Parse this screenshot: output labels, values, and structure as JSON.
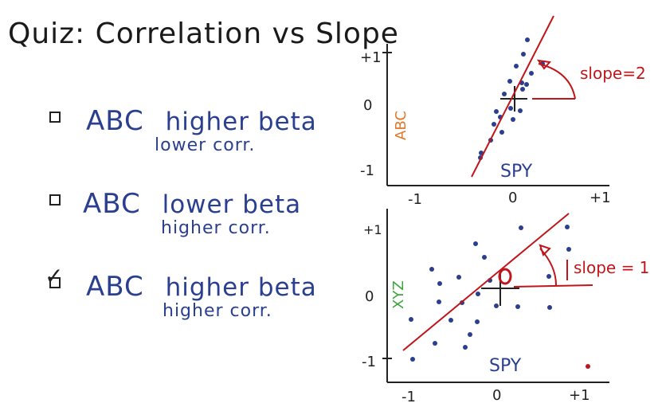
{
  "quiz": {
    "title": "Quiz: Correlation vs Slope",
    "options": [
      {
        "name": "ABC",
        "line1": "higher beta",
        "line2": "lower corr.",
        "checked": false
      },
      {
        "name": "ABC",
        "line1": "lower beta",
        "line2": "higher corr.",
        "checked": false
      },
      {
        "name": "ABC",
        "line1": "higher beta",
        "line2": "higher corr.",
        "checked": true
      }
    ]
  },
  "top_plot": {
    "ylabel": "ABC",
    "xlabel": "SPY",
    "y_ticks": [
      "+1",
      "0",
      "-1"
    ],
    "x_ticks": [
      "-1",
      "0",
      "+1"
    ],
    "slope_label": "slope=2"
  },
  "bottom_plot": {
    "ylabel": "XYZ",
    "xlabel": "SPY",
    "y_ticks": [
      "+1",
      "0",
      "-1"
    ],
    "x_ticks": [
      "-1",
      "0",
      "+1"
    ],
    "slope_label": "slope = 1"
  },
  "colors": {
    "ink": "#1a1a1a",
    "blue": "#2a3f8f",
    "red": "#c0161b",
    "orange": "#e0782a",
    "green": "#3aa63a"
  }
}
